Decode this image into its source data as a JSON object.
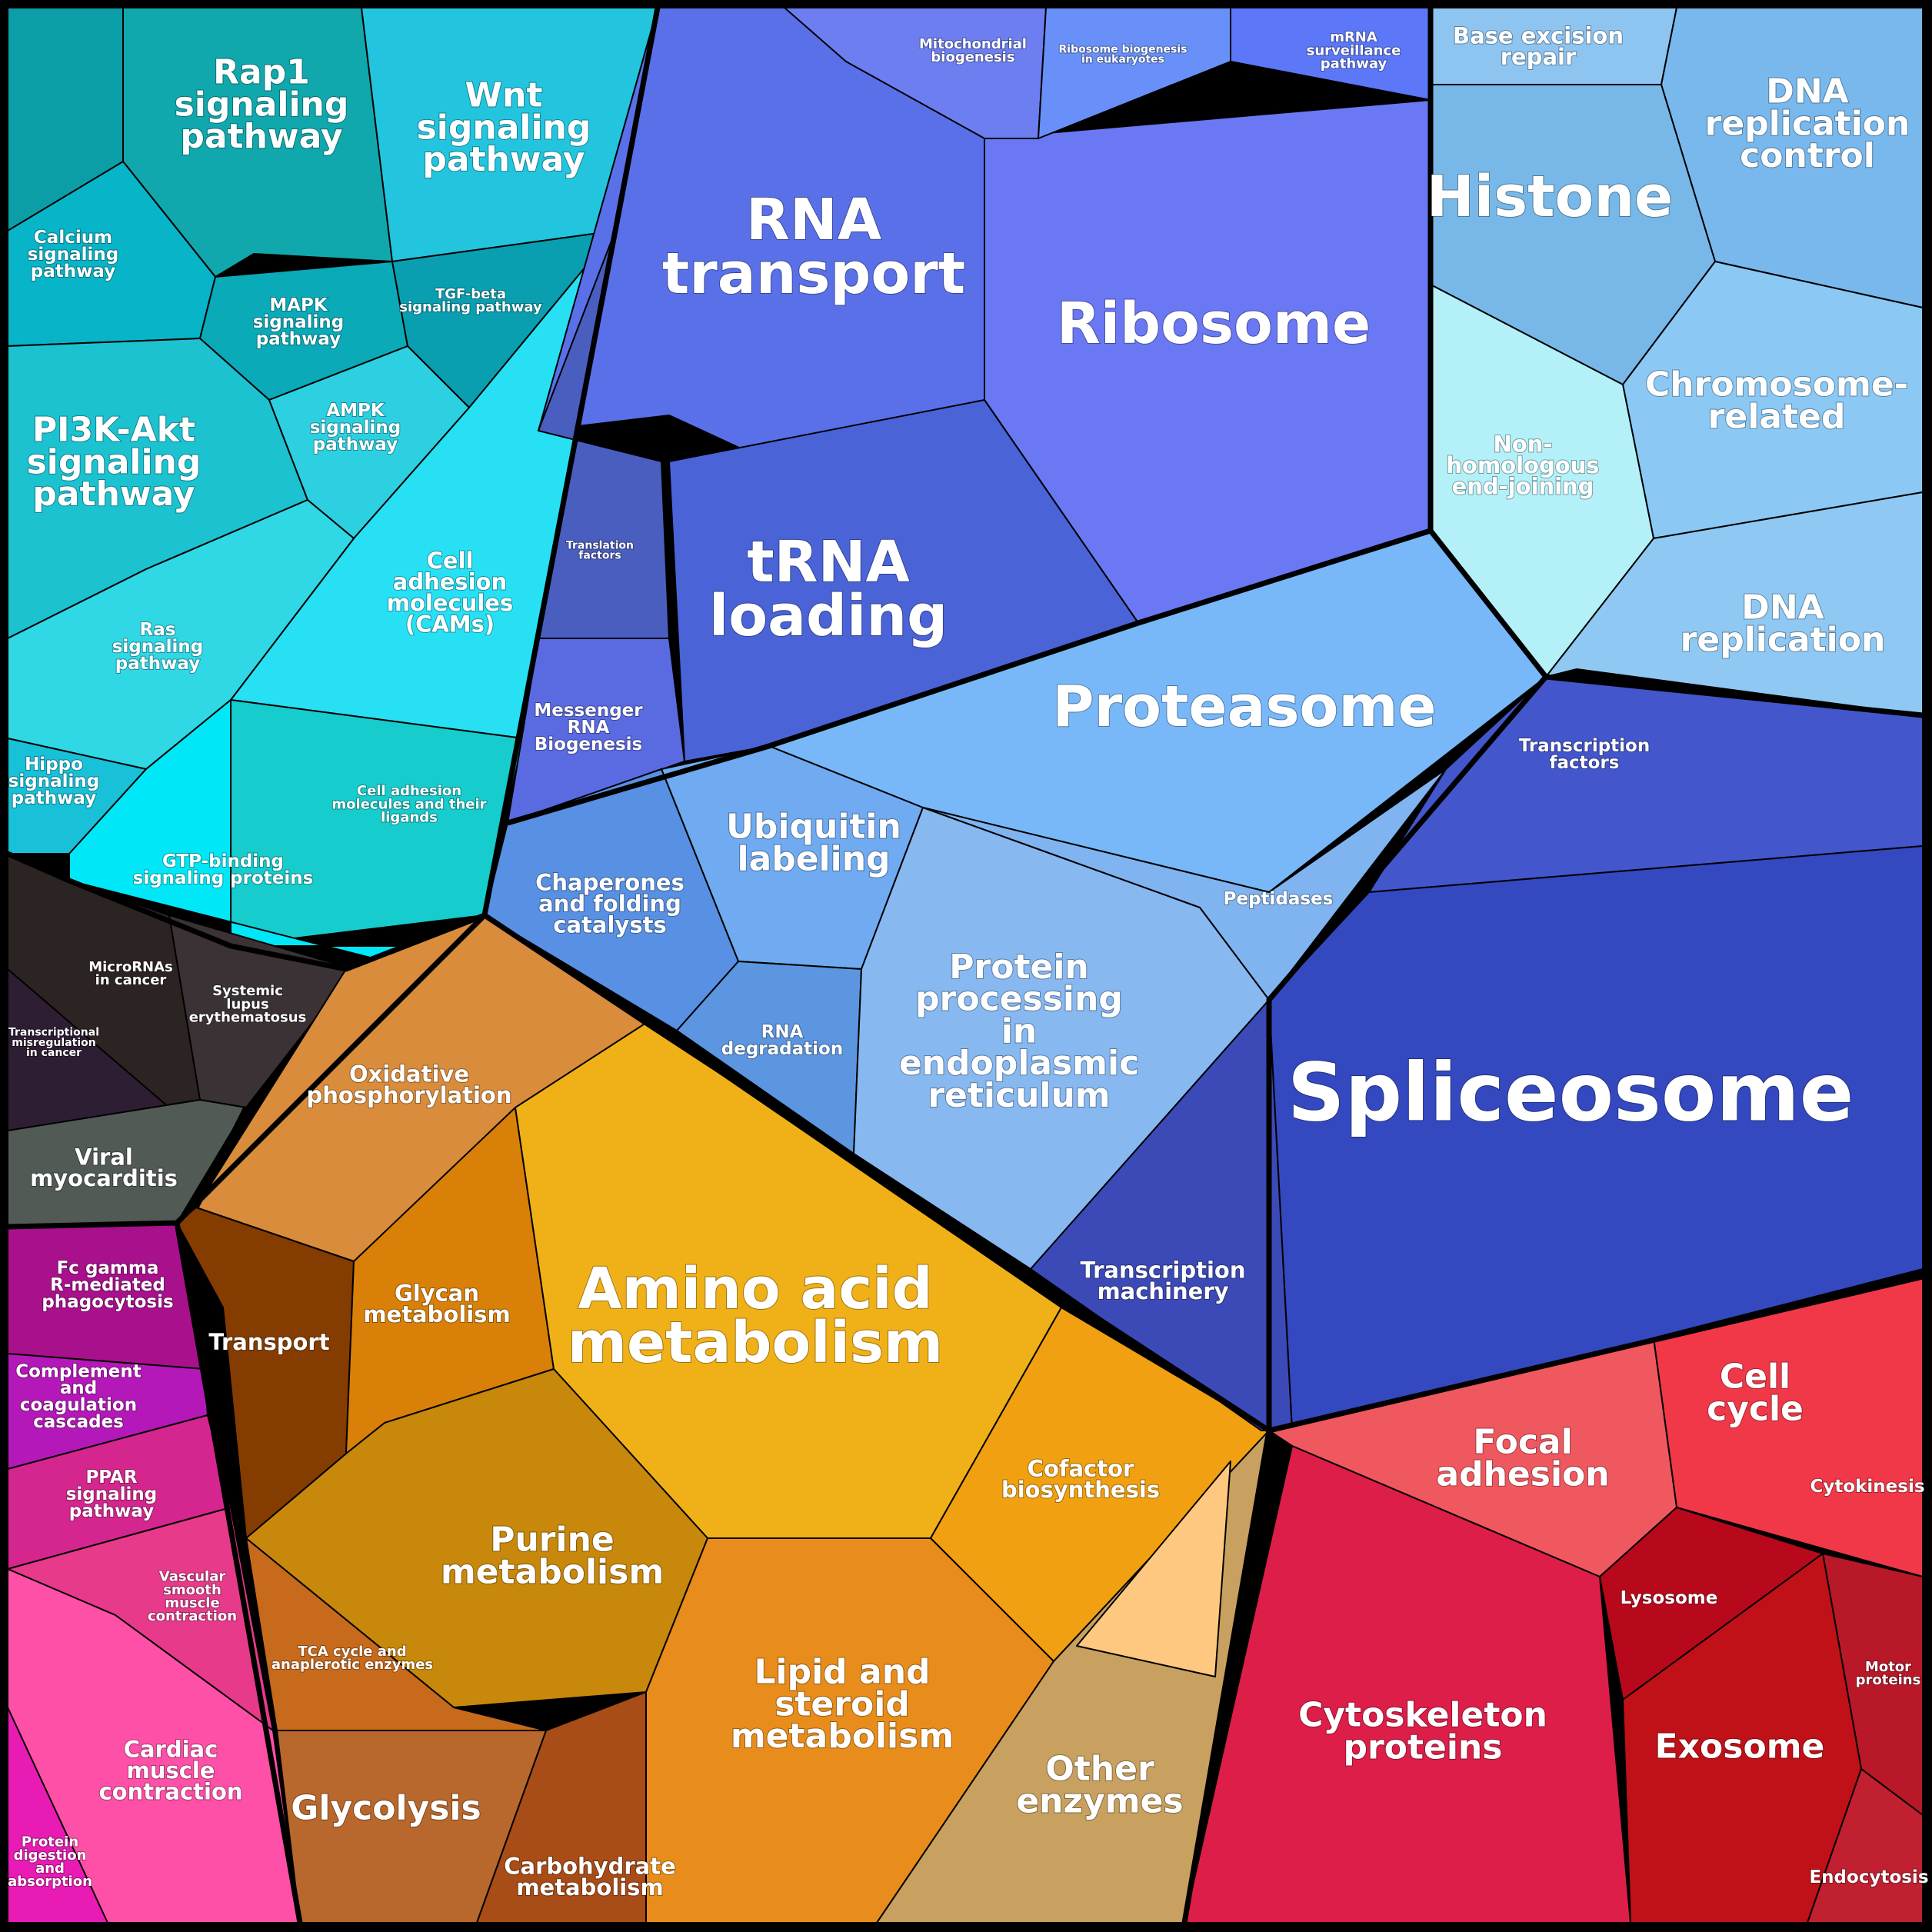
{
  "groups": [
    {
      "id": "signaling",
      "color": "#1ab8c8",
      "labels": [
        {
          "key": "rap1",
          "text": "Rap1\nsignaling\npathway",
          "size": "l"
        },
        {
          "key": "wnt",
          "text": "Wnt\nsignaling\npathway",
          "size": "l"
        },
        {
          "key": "calcium",
          "text": "Calcium\nsignaling\npathway",
          "size": "s"
        },
        {
          "key": "mapk",
          "text": "MAPK\nsignaling\npathway",
          "size": "s"
        },
        {
          "key": "tgfb",
          "text": "TGF-beta\nsignaling pathway",
          "size": "xs"
        },
        {
          "key": "pi3k",
          "text": "PI3K-Akt\nsignaling\npathway",
          "size": "l"
        },
        {
          "key": "ampk",
          "text": "AMPK\nsignaling\npathway",
          "size": "s"
        },
        {
          "key": "cams",
          "text": "Cell\nadhesion\nmolecules\n(CAMs)",
          "size": "m"
        },
        {
          "key": "ras",
          "text": "Ras\nsignaling\npathway",
          "size": "s"
        },
        {
          "key": "hippo",
          "text": "Hippo\nsignaling\npathway",
          "size": "s"
        },
        {
          "key": "cam_lig",
          "text": "Cell adhesion\nmolecules and their\nligands",
          "size": "xs"
        },
        {
          "key": "gtp",
          "text": "GTP-binding\nsignaling proteins",
          "size": "s"
        }
      ]
    },
    {
      "id": "disease",
      "color": "#2a2426",
      "labels": [
        {
          "key": "microrna",
          "text": "MicroRNAs\nin cancer",
          "size": "xs"
        },
        {
          "key": "sle",
          "text": "Systemic\nlupus\nerythematosus",
          "size": "xs"
        },
        {
          "key": "transmis",
          "text": "Transcriptional\nmisregulation\nin cancer",
          "size": "xxs"
        },
        {
          "key": "viral",
          "text": "Viral\nmyocarditis",
          "size": "m"
        }
      ]
    },
    {
      "id": "immune",
      "color": "#c0189c",
      "labels": [
        {
          "key": "fcg",
          "text": "Fc gamma\nR-mediated\nphagocytosis",
          "size": "s"
        },
        {
          "key": "complement",
          "text": "Complement\nand\ncoagulation\ncascades",
          "size": "s"
        },
        {
          "key": "ppar",
          "text": "PPAR\nsignaling\npathway",
          "size": "s"
        },
        {
          "key": "vascular",
          "text": "Vascular\nsmooth\nmuscle\ncontraction",
          "size": "xs"
        },
        {
          "key": "cardiac",
          "text": "Cardiac\nmuscle\ncontraction",
          "size": "m"
        },
        {
          "key": "protein_dig",
          "text": "Protein\ndigestion\nand\nabsorption",
          "size": "xs"
        }
      ]
    },
    {
      "id": "metabolism",
      "color": "#e29a18",
      "labels": [
        {
          "key": "oxphos",
          "text": "Oxidative\nphosphorylation",
          "size": "m"
        },
        {
          "key": "transport",
          "text": "Transport",
          "size": "m"
        },
        {
          "key": "glycan",
          "text": "Glycan\nmetabolism",
          "size": "m"
        },
        {
          "key": "amino",
          "text": "Amino acid\nmetabolism",
          "size": "xl"
        },
        {
          "key": "cofactor",
          "text": "Cofactor\nbiosynthesis",
          "size": "m"
        },
        {
          "key": "purine",
          "text": "Purine\nmetabolism",
          "size": "l"
        },
        {
          "key": "tca",
          "text": "TCA cycle and\nanaplerotic enzymes",
          "size": "xs"
        },
        {
          "key": "lipid",
          "text": "Lipid and\nsteroid\nmetabolism",
          "size": "l"
        },
        {
          "key": "glycolysis",
          "text": "Glycolysis",
          "size": "l"
        },
        {
          "key": "carb",
          "text": "Carbohydrate\nmetabolism",
          "size": "m"
        },
        {
          "key": "other_enz",
          "text": "Other\nenzymes",
          "size": "l"
        }
      ]
    },
    {
      "id": "genetic",
      "color": "#5b72e6",
      "labels": [
        {
          "key": "mito",
          "text": "Mitochondrial\nbiogenesis",
          "size": "xs"
        },
        {
          "key": "ribo_bio",
          "text": "Ribosome biogenesis\nin eukaryotes",
          "size": "xxs"
        },
        {
          "key": "mrna_surv",
          "text": "mRNA\nsurveillance\npathway",
          "size": "xs"
        },
        {
          "key": "rna_transport",
          "text": "RNA\ntransport",
          "size": "xl"
        },
        {
          "key": "ribosome",
          "text": "Ribosome",
          "size": "xl"
        },
        {
          "key": "trans_fac",
          "text": "Translation\nfactors",
          "size": "xxs"
        },
        {
          "key": "trna",
          "text": "tRNA\nloading",
          "size": "xl"
        },
        {
          "key": "mrna_bio",
          "text": "Messenger\nRNA\nBiogenesis",
          "size": "s"
        }
      ]
    },
    {
      "id": "dna",
      "color": "#8ccaf0",
      "labels": [
        {
          "key": "ber",
          "text": "Base excision\nrepair",
          "size": "m"
        },
        {
          "key": "dna_rep_ctrl",
          "text": "DNA\nreplication\ncontrol",
          "size": "l"
        },
        {
          "key": "histone",
          "text": "Histone",
          "size": "xl"
        },
        {
          "key": "chrom",
          "text": "Chromosome-\nrelated",
          "size": "l"
        },
        {
          "key": "nhej",
          "text": "Non-\nhomologous\nend-joining",
          "size": "m"
        },
        {
          "key": "dna_rep",
          "text": "DNA\nreplication",
          "size": "l"
        }
      ]
    },
    {
      "id": "folding",
      "color": "#6aa8f0",
      "labels": [
        {
          "key": "proteasome",
          "text": "Proteasome",
          "size": "xl"
        },
        {
          "key": "ubiquitin",
          "text": "Ubiquitin\nlabeling",
          "size": "l"
        },
        {
          "key": "chaperones",
          "text": "Chaperones\nand folding\ncatalysts",
          "size": "m"
        },
        {
          "key": "peptidases",
          "text": "Peptidases",
          "size": "s"
        },
        {
          "key": "rna_deg",
          "text": "RNA\ndegradation",
          "size": "s"
        },
        {
          "key": "protein_er",
          "text": "Protein\nprocessing\nin\nendoplasmic\nreticulum",
          "size": "l"
        }
      ]
    },
    {
      "id": "transcription",
      "color": "#3a52c8",
      "labels": [
        {
          "key": "trans_factors",
          "text": "Transcription\nfactors",
          "size": "s"
        },
        {
          "key": "spliceosome",
          "text": "Spliceosome",
          "size": "xxl"
        },
        {
          "key": "trans_mach",
          "text": "Transcription\nmachinery",
          "size": "m"
        }
      ]
    },
    {
      "id": "cellular",
      "color": "#e02848",
      "labels": [
        {
          "key": "cell_cycle",
          "text": "Cell\ncycle",
          "size": "l"
        },
        {
          "key": "focal",
          "text": "Focal\nadhesion",
          "size": "l"
        },
        {
          "key": "cytokinesis",
          "text": "Cytokinesis",
          "size": "s"
        },
        {
          "key": "lysosome",
          "text": "Lysosome",
          "size": "s"
        },
        {
          "key": "motor",
          "text": "Motor\nproteins",
          "size": "xs"
        },
        {
          "key": "cytoskeleton",
          "text": "Cytoskeleton\nproteins",
          "size": "l"
        },
        {
          "key": "exosome",
          "text": "Exosome",
          "size": "l"
        },
        {
          "key": "endocytosis",
          "text": "Endocytosis",
          "size": "s"
        }
      ]
    }
  ]
}
